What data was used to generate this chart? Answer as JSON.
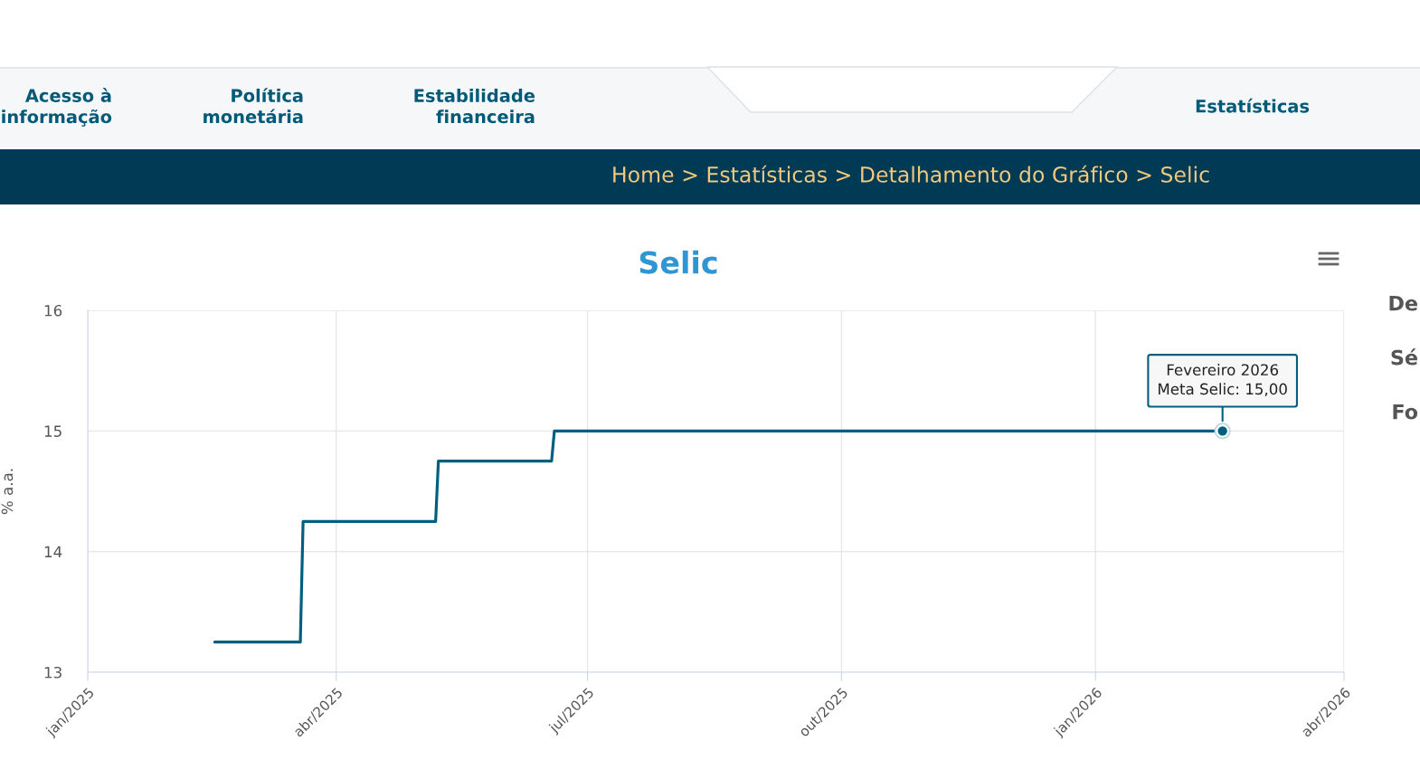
{
  "chart_data": {
    "type": "line",
    "title": "Selic",
    "ylabel": "% a.a.",
    "x": [
      "2025-02-16",
      "2025-03-19",
      "2025-03-20",
      "2025-05-07",
      "2025-05-08",
      "2025-06-18",
      "2025-06-19",
      "2026-02-16"
    ],
    "values": [
      13.25,
      13.25,
      14.25,
      14.25,
      14.75,
      14.75,
      15,
      15
    ],
    "color": "#005f7f",
    "xlim": [
      "2025-01-01",
      "2026-04-01"
    ],
    "xticks": [
      {
        "value": "2025-01-01",
        "label": "jan/2025"
      },
      {
        "value": "2025-04-01",
        "label": "abr/2025"
      },
      {
        "value": "2025-07-01",
        "label": "jul/2025"
      },
      {
        "value": "2025-10-01",
        "label": "out/2025"
      },
      {
        "value": "2026-01-01",
        "label": "jan/2026"
      },
      {
        "value": "2026-04-01",
        "label": "abr/2026"
      }
    ],
    "ylim": [
      13,
      16
    ],
    "yticks": [
      13,
      14,
      15,
      16
    ],
    "grid": true,
    "annotations": [
      "Acesso à\ninformação",
      "Política\nmonetária",
      "Estabilidade\nfinanceira",
      "Estatísticas",
      "Home > Estatísticas > Detalhamento do Gráfico > Selic",
      {
        "text": "Fevereiro 2026\nMeta Selic: 15,00",
        "x": "2026-02-16",
        "y": 15
      },
      "De",
      "Sé",
      "Fo"
    ]
  }
}
